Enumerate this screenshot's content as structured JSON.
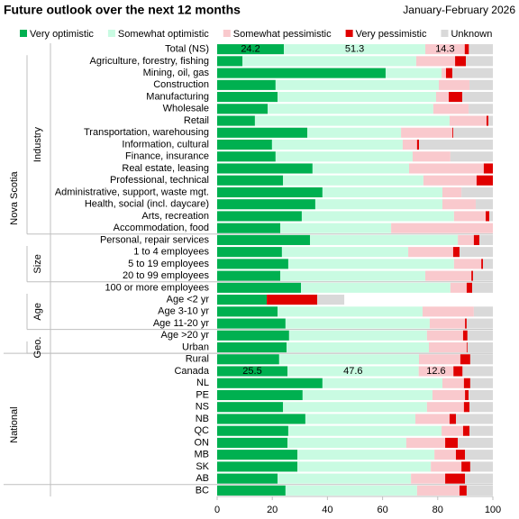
{
  "chart_data": {
    "type": "stacked-bar-horizontal",
    "title": "Future outlook over the next 12 months",
    "subtitle": "January-February 2026",
    "categories": [
      "Total (NS)",
      "Agriculture, forestry, fishing",
      "Mining, oil, gas",
      "Construction",
      "Manufacturing",
      "Wholesale",
      "Retail",
      "Transportation, warehousing",
      "Information, cultural",
      "Finance, insurance",
      "Real estate, leasing",
      "Professional, technical",
      "Administrative, support, waste mgt.",
      "Health, social (incl. daycare)",
      "Arts, recreation",
      "Accommodation, food",
      "Personal, repair services",
      "1 to 4 employees",
      "5 to 19 employees",
      "20 to 99 employees",
      "100 or more employees",
      "Age <2 yr",
      "Age 3-10 yr",
      "Age 11-20 yr",
      "Age >20 yr",
      "Urban",
      "Rural",
      "Canada",
      "NL",
      "PE",
      "NS",
      "NB",
      "QC",
      "ON",
      "MB",
      "SK",
      "AB",
      "BC"
    ],
    "groups": [
      {
        "label": "Nova Scotia",
        "start": 0,
        "end": 26,
        "level": 0
      },
      {
        "label": "Industry",
        "start": 1,
        "end": 16,
        "level": 1
      },
      {
        "label": "Size",
        "start": 17,
        "end": 20,
        "level": 1
      },
      {
        "label": "Age",
        "start": 21,
        "end": 24,
        "level": 1
      },
      {
        "label": "Geo.",
        "start": 25,
        "end": 26,
        "level": 1
      },
      {
        "label": "National",
        "start": 27,
        "end": 37,
        "level": 0
      }
    ],
    "series": [
      {
        "name": "Very optimistic",
        "color": "#00b050",
        "values": [
          24.2,
          9.2,
          61.1,
          21.2,
          21.9,
          18.3,
          13.7,
          32.7,
          19.9,
          21.2,
          34.6,
          23.9,
          38.2,
          35.6,
          30.7,
          22.9,
          33.7,
          23.5,
          25.8,
          22.9,
          30.4,
          18.0,
          21.9,
          24.8,
          26.1,
          25.2,
          22.5,
          25.5,
          38.2,
          31.0,
          23.9,
          32.0,
          25.8,
          25.5,
          29.1,
          29.1,
          21.9,
          24.8
        ],
        "value_labels": [
          "24.2",
          null,
          null,
          null,
          null,
          null,
          null,
          null,
          null,
          null,
          null,
          null,
          null,
          null,
          null,
          null,
          null,
          null,
          null,
          null,
          null,
          null,
          null,
          null,
          null,
          null,
          null,
          "25.5",
          null,
          null,
          null,
          null,
          null,
          null,
          null,
          null,
          null,
          null
        ]
      },
      {
        "name": "Somewhat optimistic",
        "color": "#c9fbe2",
        "values": [
          51.3,
          63.0,
          20.3,
          59.2,
          57.5,
          60.1,
          70.6,
          34.0,
          47.4,
          49.7,
          35.0,
          50.9,
          43.5,
          46.1,
          55.2,
          40.2,
          53.6,
          45.8,
          60.1,
          52.6,
          54.2,
          0,
          52.6,
          52.3,
          50.0,
          51.6,
          50.7,
          47.6,
          43.5,
          47.1,
          52.2,
          39.9,
          55.6,
          43.1,
          49.7,
          48.4,
          48.4,
          47.7
        ],
        "value_labels": [
          "51.3",
          null,
          null,
          null,
          null,
          null,
          null,
          null,
          null,
          null,
          null,
          null,
          null,
          null,
          null,
          null,
          null,
          null,
          null,
          null,
          null,
          null,
          null,
          null,
          null,
          null,
          null,
          "47.6",
          null,
          null,
          null,
          null,
          null,
          null,
          null,
          null,
          null,
          null
        ]
      },
      {
        "name": "Somewhat pessimistic",
        "color": "#f9c9cd",
        "values": [
          14.3,
          14.1,
          1.6,
          11.1,
          4.6,
          12.8,
          13.4,
          18.6,
          5.2,
          13.7,
          27.1,
          19.3,
          6.9,
          12.1,
          11.5,
          36.9,
          5.8,
          16.3,
          9.9,
          16.7,
          5.9,
          0,
          18.6,
          12.8,
          13.1,
          13.7,
          15.0,
          12.6,
          7.8,
          11.8,
          13.4,
          12.4,
          7.8,
          14.1,
          7.8,
          11.1,
          12.4,
          15.4
        ],
        "value_labels": [
          "14.3",
          null,
          null,
          null,
          null,
          null,
          null,
          null,
          null,
          null,
          null,
          null,
          null,
          null,
          null,
          null,
          null,
          null,
          null,
          null,
          null,
          null,
          null,
          null,
          null,
          null,
          null,
          "12.6",
          null,
          null,
          null,
          null,
          null,
          null,
          null,
          null,
          null,
          null
        ]
      },
      {
        "name": "Very pessimistic",
        "color": "#e00000",
        "values": [
          1.5,
          3.9,
          2.3,
          0,
          4.9,
          0,
          0.7,
          0.3,
          0.7,
          0,
          3.3,
          5.9,
          0,
          0,
          1.3,
          0,
          2.0,
          2.3,
          0.6,
          0.6,
          2.0,
          18.3,
          0,
          0.6,
          1.6,
          0.3,
          3.6,
          3.3,
          2.3,
          1.3,
          2.0,
          2.3,
          2.3,
          4.6,
          3.3,
          3.2,
          7.2,
          2.6
        ]
      },
      {
        "name": "Unknown",
        "color": "#d9d9d9",
        "values": [
          8.7,
          9.8,
          14.7,
          8.5,
          11.1,
          8.8,
          1.6,
          14.4,
          26.8,
          15.4,
          0,
          0,
          11.4,
          6.2,
          1.3,
          0,
          4.9,
          12.1,
          3.6,
          7.2,
          7.5,
          9.8,
          6.9,
          9.5,
          9.2,
          9.2,
          8.2,
          11.0,
          8.2,
          8.8,
          8.5,
          13.4,
          8.5,
          12.7,
          10.1,
          8.2,
          10.1,
          9.5
        ]
      }
    ],
    "xlim": [
      0,
      100
    ],
    "xticks": [
      0,
      20,
      40,
      60,
      80,
      100
    ],
    "legend": "top"
  }
}
